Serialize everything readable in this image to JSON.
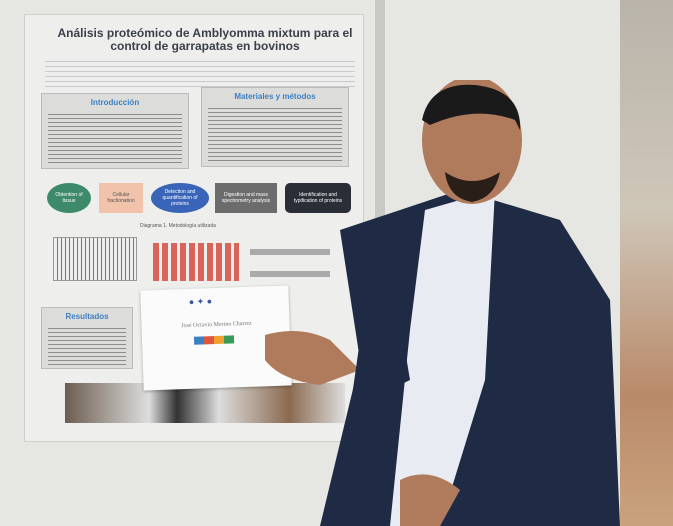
{
  "poster": {
    "title": "Análisis proteómico de Amblyomma mixtum para el control de garrapatas en bovinos",
    "sections": {
      "intro": "Introducción",
      "methods": "Materiales y métodos",
      "results": "Resultados"
    },
    "flow": [
      "Obtention of tissue",
      "Cellular fractionation",
      "Detection and quantification of proteins",
      "Digestion and mass spectrometry analysis",
      "Identification and typification of proteins"
    ],
    "diagram_caption": "Diagrama 1. Metodología utilizada"
  },
  "certificate": {
    "name": "José Octavio Merino Charrez"
  },
  "colors": {
    "suit": "#1f2a44",
    "shirt": "#e8ecf2",
    "skin": "#b07b5c",
    "poster_accent": "#3e7fc4"
  }
}
